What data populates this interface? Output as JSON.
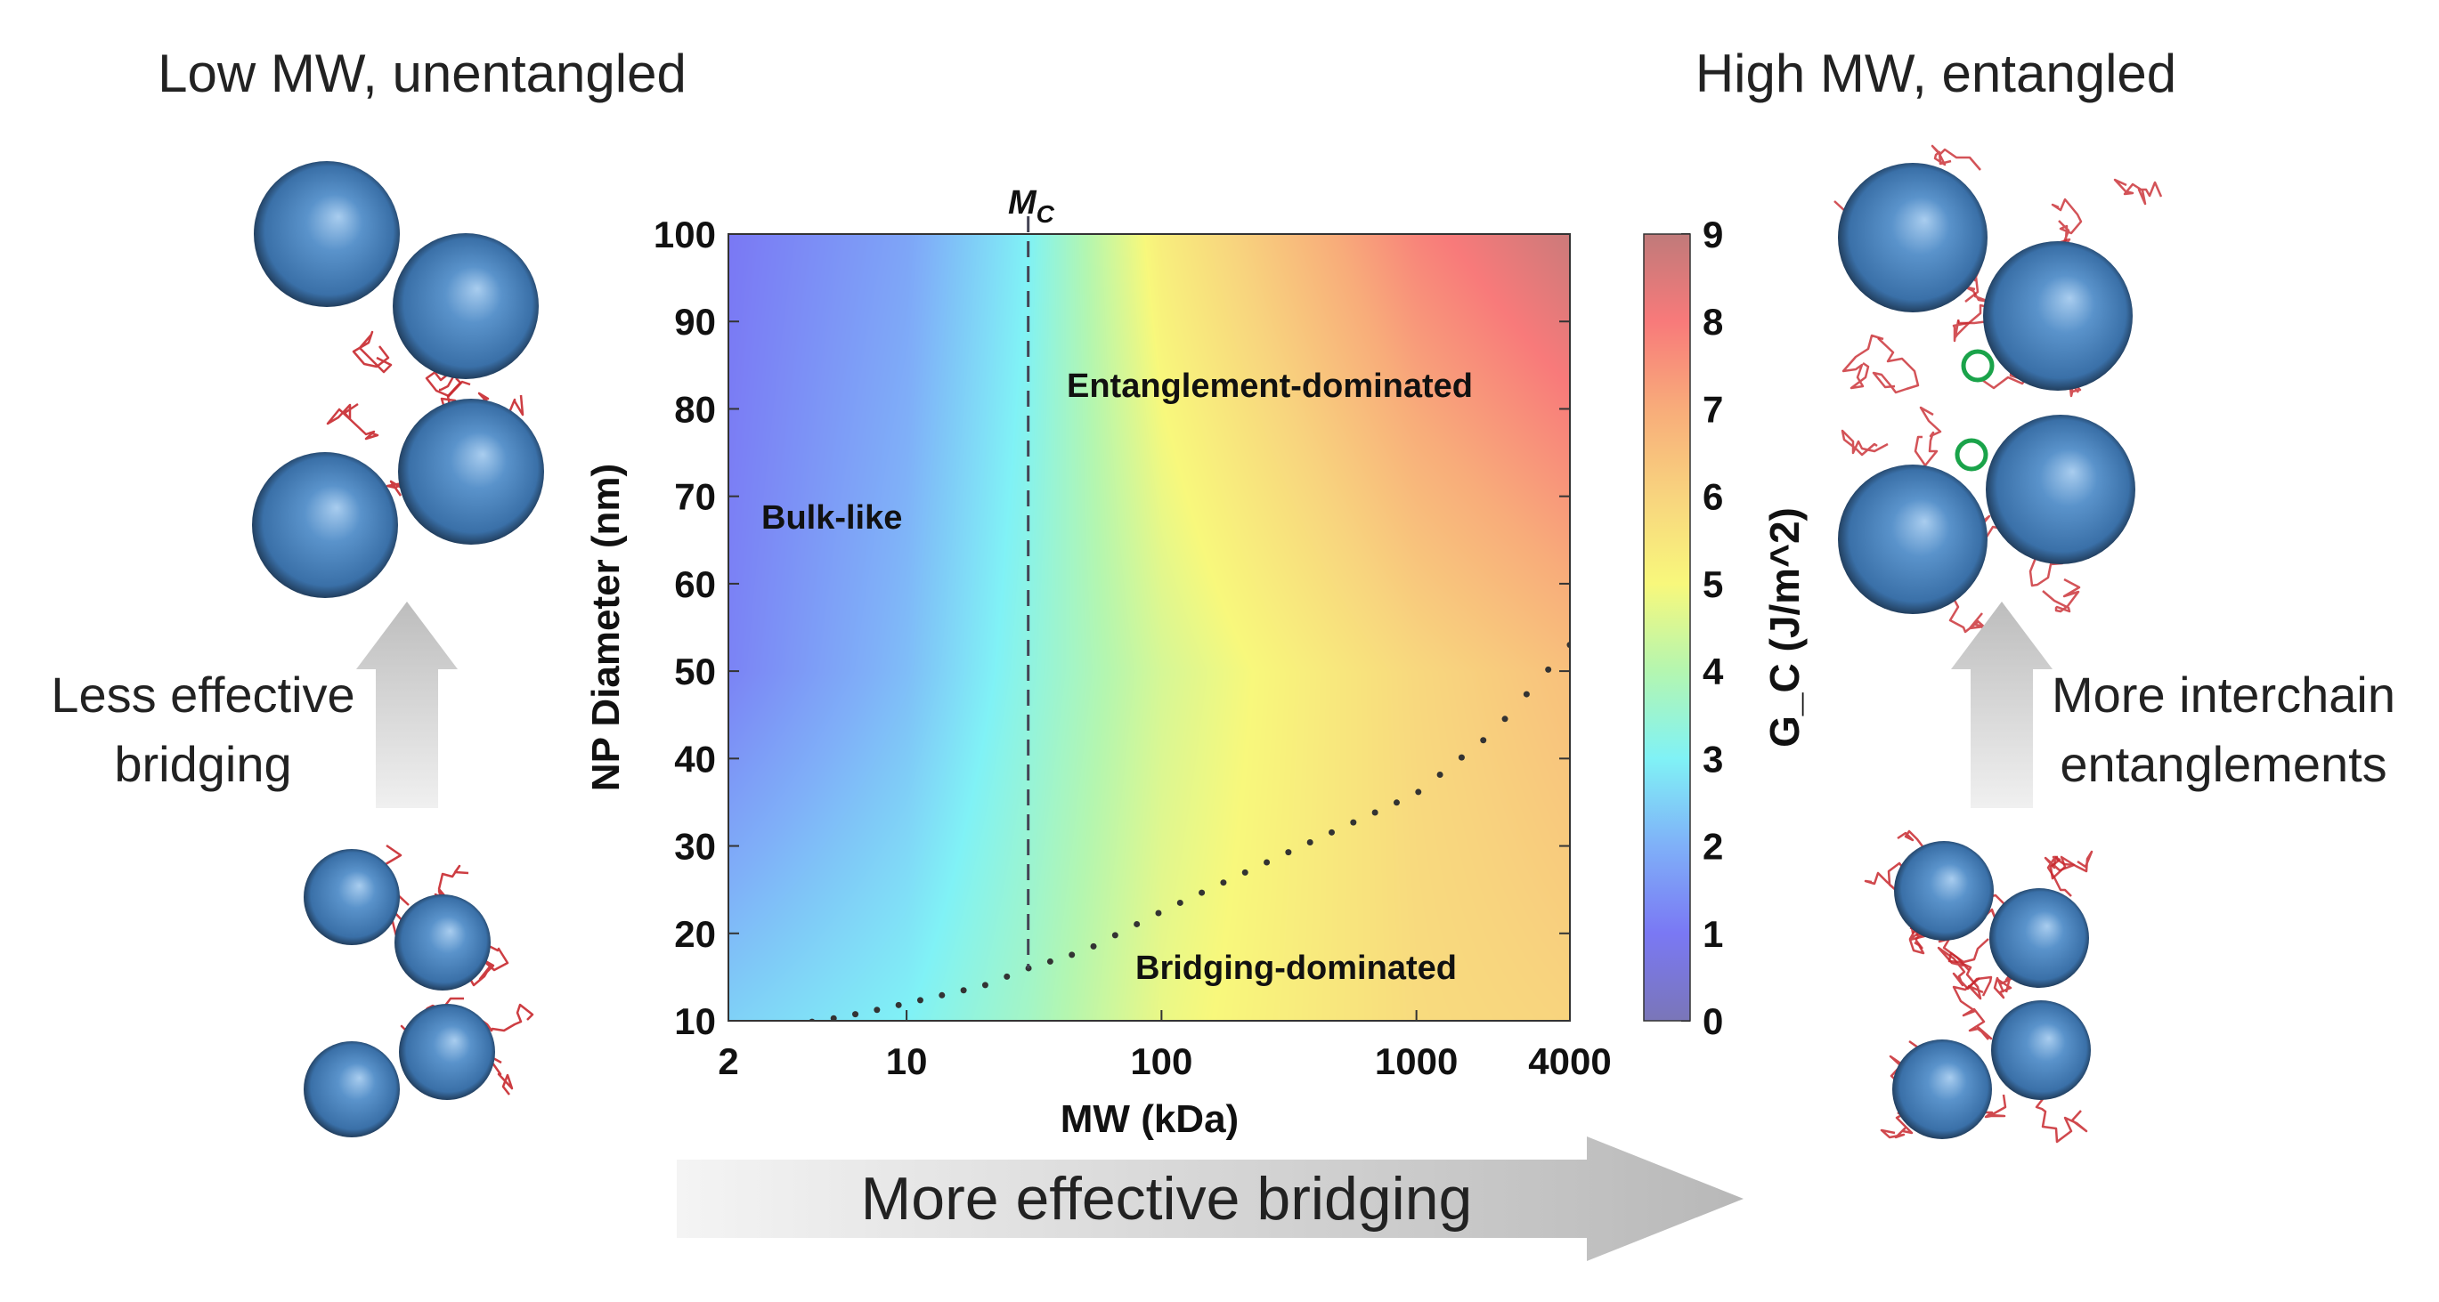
{
  "panel_left": {
    "title": "Low MW, unentangled",
    "arrow_label_line1": "Less effective",
    "arrow_label_line2": "bridging"
  },
  "panel_right": {
    "title": "High MW, entangled",
    "arrow_label_line1": "More interchain",
    "arrow_label_line2": "entanglements"
  },
  "bottom_arrow_label": "More effective bridging",
  "colors": {
    "sphere": "#4a86c0",
    "polymer_chain": "#c8282e",
    "entanglement_marker": "#1aa34a",
    "arrow": "#c8c8c8"
  },
  "chart_data": {
    "type": "heatmap",
    "xlabel": "MW (kDa)",
    "ylabel": "NP Diameter (nm)",
    "colorbar_label": "G_C (J/m^2)",
    "colorbar_label_main": "G",
    "colorbar_label_sub": "C",
    "colorbar_label_units": " (J/m",
    "colorbar_label_sup": "2",
    "colorbar_label_close": ")",
    "x_scale": "log",
    "xlim": [
      2,
      4000
    ],
    "ylim": [
      10,
      100
    ],
    "clim": [
      0,
      9
    ],
    "x_ticks": [
      "2",
      "10",
      "100",
      "1000",
      "4000"
    ],
    "x_tick_values": [
      2,
      10,
      100,
      1000,
      4000
    ],
    "y_ticks": [
      "10",
      "20",
      "30",
      "40",
      "50",
      "60",
      "70",
      "80",
      "90",
      "100"
    ],
    "colorbar_ticks": [
      "0",
      "1",
      "2",
      "3",
      "4",
      "5",
      "6",
      "7",
      "8",
      "9"
    ],
    "colormap": [
      "#7a76b8",
      "#7a78f4",
      "#7fb0f8",
      "#80f2f6",
      "#b4f6b0",
      "#f8f87c",
      "#f8d47e",
      "#f8ac7a",
      "#f87a7a",
      "#c07a7a"
    ],
    "grid_mw": [
      2,
      10,
      30,
      100,
      1000,
      4000
    ],
    "grid_diameter": [
      10,
      50,
      100
    ],
    "gc_values": [
      [
        2.5,
        3.0,
        3.7,
        4.8,
        5.8,
        6.0
      ],
      [
        1.2,
        2.2,
        3.3,
        4.5,
        5.9,
        6.5
      ],
      [
        1.0,
        1.8,
        3.0,
        5.3,
        7.8,
        8.8
      ]
    ],
    "mc_line": {
      "label_main": "M",
      "label_sub": "C",
      "mw": 30,
      "diameter_range": [
        16,
        100
      ]
    },
    "bridging_boundary": {
      "mw": [
        3.5,
        5,
        7,
        10,
        20,
        30,
        50,
        100,
        300,
        1000,
        2000,
        4000
      ],
      "diameter": [
        9.5,
        10.2,
        11,
        12,
        14,
        16,
        18,
        22.5,
        29,
        36,
        43,
        53
      ]
    },
    "region_labels": [
      "Bulk-like",
      "Entanglement-dominated",
      "Bridging-dominated"
    ],
    "grid": false
  }
}
